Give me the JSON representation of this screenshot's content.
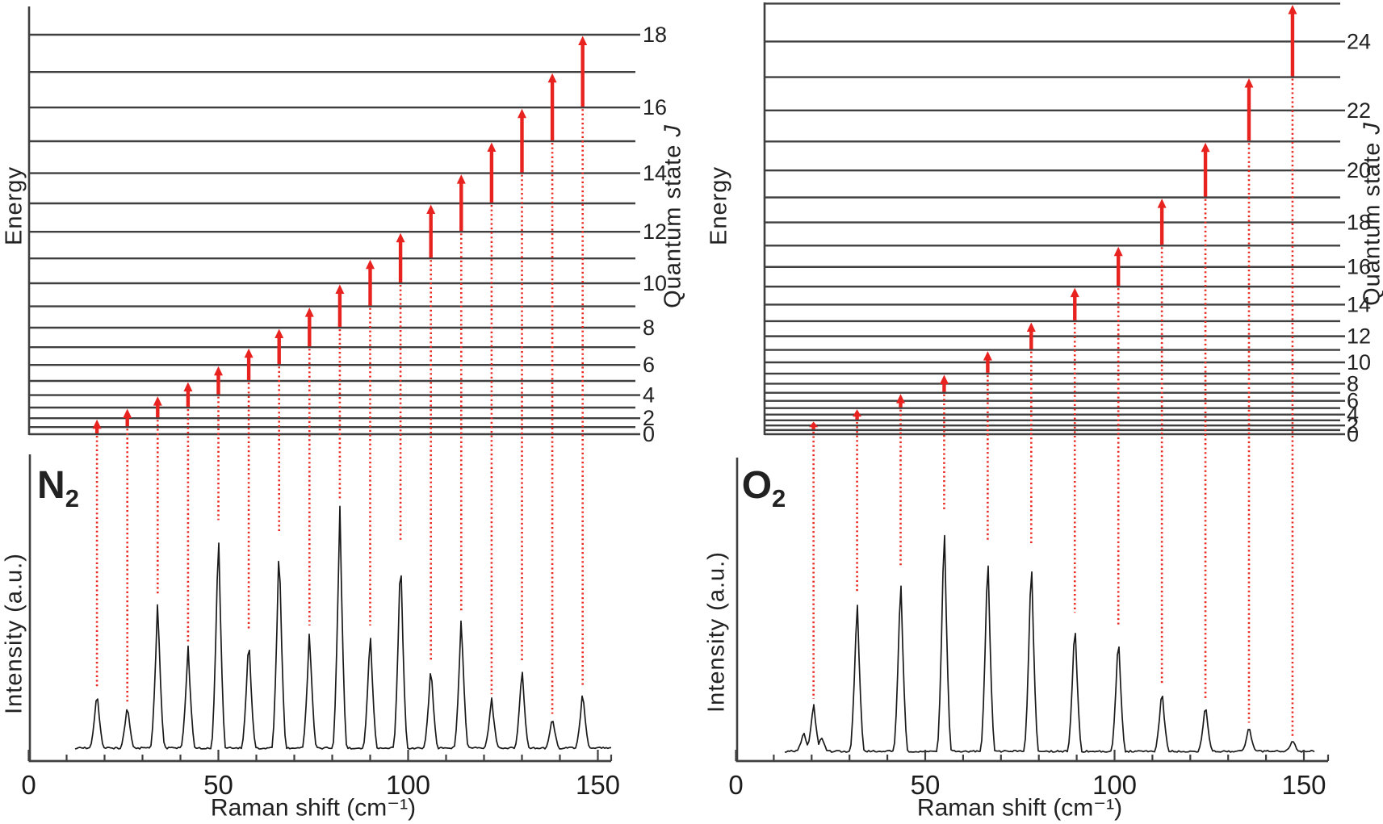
{
  "figure": {
    "background": "#ffffff",
    "accent_red": "#e8231f",
    "dotted_red": "#ea2a21",
    "level_line_color": "#3f3f3f",
    "trace_color": "#1a1a1a",
    "text_color": "#222222"
  },
  "chart_data": [
    {
      "panel": "left",
      "type": "line",
      "molecule": "N2",
      "title_main": "N",
      "title_sub": "2",
      "energy_axis_label": "Energy",
      "quantum_label_main": "Quantum state ",
      "quantum_label_j": "J",
      "intensity_axis_label": "Intensity (a.u.)",
      "xlabel": "Raman shift (cm⁻¹)",
      "x_ticks": [
        0,
        50,
        100,
        150
      ],
      "x_minor_step": 10,
      "xlim": [
        0,
        153
      ],
      "levels_J": [
        0,
        1,
        2,
        3,
        4,
        5,
        6,
        7,
        8,
        9,
        10,
        11,
        12,
        13,
        14,
        15,
        16,
        17,
        18
      ],
      "labeled_levels": [
        0,
        2,
        4,
        6,
        8,
        10,
        12,
        14,
        16,
        18
      ],
      "transitions": [
        {
          "from": 0,
          "to": 2,
          "raman_shift_cm1": 18,
          "rel_intensity": 0.24
        },
        {
          "from": 1,
          "to": 3,
          "raman_shift_cm1": 26,
          "rel_intensity": 0.18
        },
        {
          "from": 2,
          "to": 4,
          "raman_shift_cm1": 34,
          "rel_intensity": 0.62
        },
        {
          "from": 3,
          "to": 5,
          "raman_shift_cm1": 42,
          "rel_intensity": 0.42
        },
        {
          "from": 4,
          "to": 6,
          "raman_shift_cm1": 50,
          "rel_intensity": 0.92
        },
        {
          "from": 5,
          "to": 7,
          "raman_shift_cm1": 58,
          "rel_intensity": 0.47
        },
        {
          "from": 6,
          "to": 8,
          "raman_shift_cm1": 66,
          "rel_intensity": 0.87
        },
        {
          "from": 7,
          "to": 9,
          "raman_shift_cm1": 74,
          "rel_intensity": 0.49
        },
        {
          "from": 8,
          "to": 10,
          "raman_shift_cm1": 82,
          "rel_intensity": 1.0
        },
        {
          "from": 9,
          "to": 11,
          "raman_shift_cm1": 90,
          "rel_intensity": 0.49
        },
        {
          "from": 10,
          "to": 12,
          "raman_shift_cm1": 98,
          "rel_intensity": 0.83
        },
        {
          "from": 11,
          "to": 13,
          "raman_shift_cm1": 106,
          "rel_intensity": 0.35
        },
        {
          "from": 12,
          "to": 14,
          "raman_shift_cm1": 114,
          "rel_intensity": 0.55
        },
        {
          "from": 13,
          "to": 15,
          "raman_shift_cm1": 122,
          "rel_intensity": 0.21
        },
        {
          "from": 14,
          "to": 16,
          "raman_shift_cm1": 130,
          "rel_intensity": 0.34
        },
        {
          "from": 15,
          "to": 17,
          "raman_shift_cm1": 138,
          "rel_intensity": 0.13
        },
        {
          "from": 16,
          "to": 18,
          "raman_shift_cm1": 146,
          "rel_intensity": 0.24
        }
      ]
    },
    {
      "panel": "right",
      "type": "line",
      "molecule": "O2",
      "title_main": "O",
      "title_sub": "2",
      "energy_axis_label": "Energy",
      "quantum_label_main": "Quantum state ",
      "quantum_label_j": "J",
      "intensity_axis_label": "Intensity (a.u.)",
      "xlabel": "Raman shift (cm⁻¹)",
      "x_ticks": [
        0,
        50,
        100,
        150
      ],
      "x_minor_step": 10,
      "xlim": [
        0,
        156
      ],
      "levels_J": [
        0,
        1,
        2,
        3,
        4,
        5,
        6,
        7,
        8,
        9,
        10,
        11,
        12,
        13,
        14,
        15,
        16,
        17,
        18,
        19,
        20,
        21,
        22,
        23,
        24,
        25
      ],
      "labeled_levels": [
        0,
        2,
        4,
        6,
        8,
        10,
        12,
        14,
        16,
        18,
        20,
        22,
        24
      ],
      "transitions": [
        {
          "from": 1,
          "to": 3,
          "raman_shift_cm1": 20.5,
          "rel_intensity": 0.21
        },
        {
          "from": 3,
          "to": 5,
          "raman_shift_cm1": 32.0,
          "rel_intensity": 0.66
        },
        {
          "from": 5,
          "to": 7,
          "raman_shift_cm1": 43.5,
          "rel_intensity": 0.76
        },
        {
          "from": 7,
          "to": 9,
          "raman_shift_cm1": 55.0,
          "rel_intensity": 1.0
        },
        {
          "from": 9,
          "to": 11,
          "raman_shift_cm1": 66.5,
          "rel_intensity": 0.87
        },
        {
          "from": 11,
          "to": 13,
          "raman_shift_cm1": 78.0,
          "rel_intensity": 0.85
        },
        {
          "from": 13,
          "to": 15,
          "raman_shift_cm1": 89.5,
          "rel_intensity": 0.57
        },
        {
          "from": 15,
          "to": 17,
          "raman_shift_cm1": 101.0,
          "rel_intensity": 0.51
        },
        {
          "from": 17,
          "to": 19,
          "raman_shift_cm1": 112.5,
          "rel_intensity": 0.27
        },
        {
          "from": 19,
          "to": 21,
          "raman_shift_cm1": 124.0,
          "rel_intensity": 0.21
        },
        {
          "from": 21,
          "to": 23,
          "raman_shift_cm1": 135.5,
          "rel_intensity": 0.11
        },
        {
          "from": 23,
          "to": 25,
          "raman_shift_cm1": 147.0,
          "rel_intensity": 0.05
        }
      ],
      "first_peak_shoulders": [
        {
          "offset_cm1": -2.6,
          "rel_intensity": 0.085
        },
        {
          "offset_cm1": 2.1,
          "rel_intensity": 0.06
        }
      ]
    }
  ]
}
